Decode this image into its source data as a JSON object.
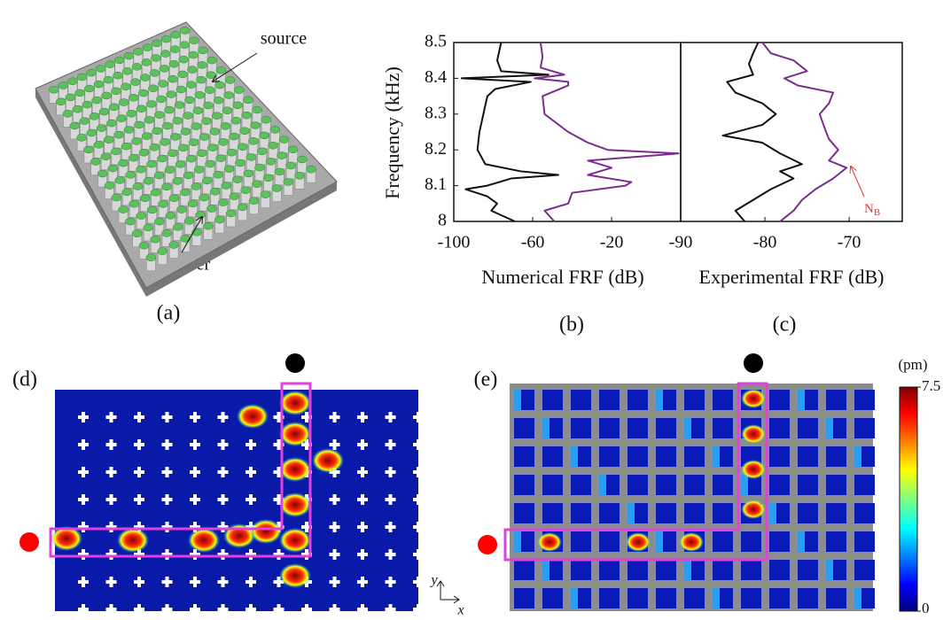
{
  "chart_data": [
    {
      "type": "line",
      "panel_label": "(b)",
      "ylabel": "Frequency (kHz)",
      "xlabel": "Numerical FRF (dB)",
      "xlim": [
        -100,
        15
      ],
      "xticks": [
        -100,
        -60,
        -20
      ],
      "ylim": [
        8,
        8.5
      ],
      "yticks": [
        8,
        8.1,
        8.2,
        8.3,
        8.4,
        8.5
      ],
      "series": [
        {
          "color": "#111111",
          "x": [
            8.0,
            8.03,
            8.05,
            8.07,
            8.09,
            8.1,
            8.12,
            8.13,
            8.14,
            8.16,
            8.2,
            8.25,
            8.3,
            8.35,
            8.37,
            8.39,
            8.4,
            8.41,
            8.42,
            8.45,
            8.5
          ],
          "values": [
            -69,
            -81,
            -78,
            -83,
            -94,
            -83,
            -71,
            -47,
            -66,
            -84,
            -88,
            -87,
            -85,
            -83,
            -79,
            -61,
            -96,
            -52,
            -76,
            -78,
            -76
          ]
        },
        {
          "color": "#7b2d8e",
          "x": [
            8.0,
            8.03,
            8.05,
            8.08,
            8.1,
            8.11,
            8.13,
            8.15,
            8.17,
            8.19,
            8.2,
            8.22,
            8.25,
            8.3,
            8.35,
            8.38,
            8.39,
            8.4,
            8.41,
            8.43,
            8.46,
            8.5
          ],
          "values": [
            -49,
            -54,
            -42,
            -40,
            -13,
            -10,
            -32,
            -20,
            -32,
            14,
            -22,
            -32,
            -42,
            -54,
            -55,
            -42,
            -42,
            -59,
            -44,
            -56,
            -55,
            -56
          ]
        }
      ]
    },
    {
      "type": "line",
      "panel_label": "(c)",
      "xlabel": "Experimental FRF (dB)",
      "xlim": [
        -90,
        -63.7
      ],
      "xticks": [
        -90,
        -80,
        -70
      ],
      "ylim": [
        8,
        8.5
      ],
      "annotation": {
        "text": "N",
        "subscript": "B"
      },
      "series": [
        {
          "color": "#111111",
          "x": [
            8.0,
            8.03,
            8.06,
            8.09,
            8.12,
            8.14,
            8.16,
            8.19,
            8.22,
            8.24,
            8.27,
            8.3,
            8.33,
            8.36,
            8.39,
            8.41,
            8.44,
            8.47,
            8.5
          ],
          "values": [
            -82.4,
            -83.5,
            -81.4,
            -79.3,
            -76.6,
            -78.2,
            -75.6,
            -78.2,
            -80.3,
            -85,
            -80.3,
            -78.7,
            -80.3,
            -83.5,
            -84.5,
            -81.4,
            -81.9,
            -81.4,
            -80.8
          ]
        },
        {
          "color": "#7b2d8e",
          "x": [
            8.0,
            8.03,
            8.06,
            8.09,
            8.12,
            8.15,
            8.17,
            8.2,
            8.23,
            8.26,
            8.3,
            8.33,
            8.36,
            8.38,
            8.4,
            8.42,
            8.45,
            8.47,
            8.5
          ],
          "values": [
            -78.2,
            -76.6,
            -75.6,
            -74,
            -71.9,
            -70.3,
            -72.4,
            -71.3,
            -72.4,
            -72.9,
            -73.5,
            -72.4,
            -71.9,
            -76.1,
            -77.7,
            -75,
            -76.6,
            -79.3,
            -80.3
          ]
        }
      ]
    }
  ],
  "panels": {
    "a": {
      "label": "(a)",
      "source": "source",
      "receiver": "receiver"
    },
    "d": {
      "label": "(d)",
      "axis_x": "x",
      "axis_y": "y"
    },
    "e": {
      "label": "(e)",
      "colorbar": {
        "unit": "(pm)",
        "ylim": [
          0,
          7.5
        ],
        "yticks": [
          0,
          7.5
        ]
      }
    }
  }
}
